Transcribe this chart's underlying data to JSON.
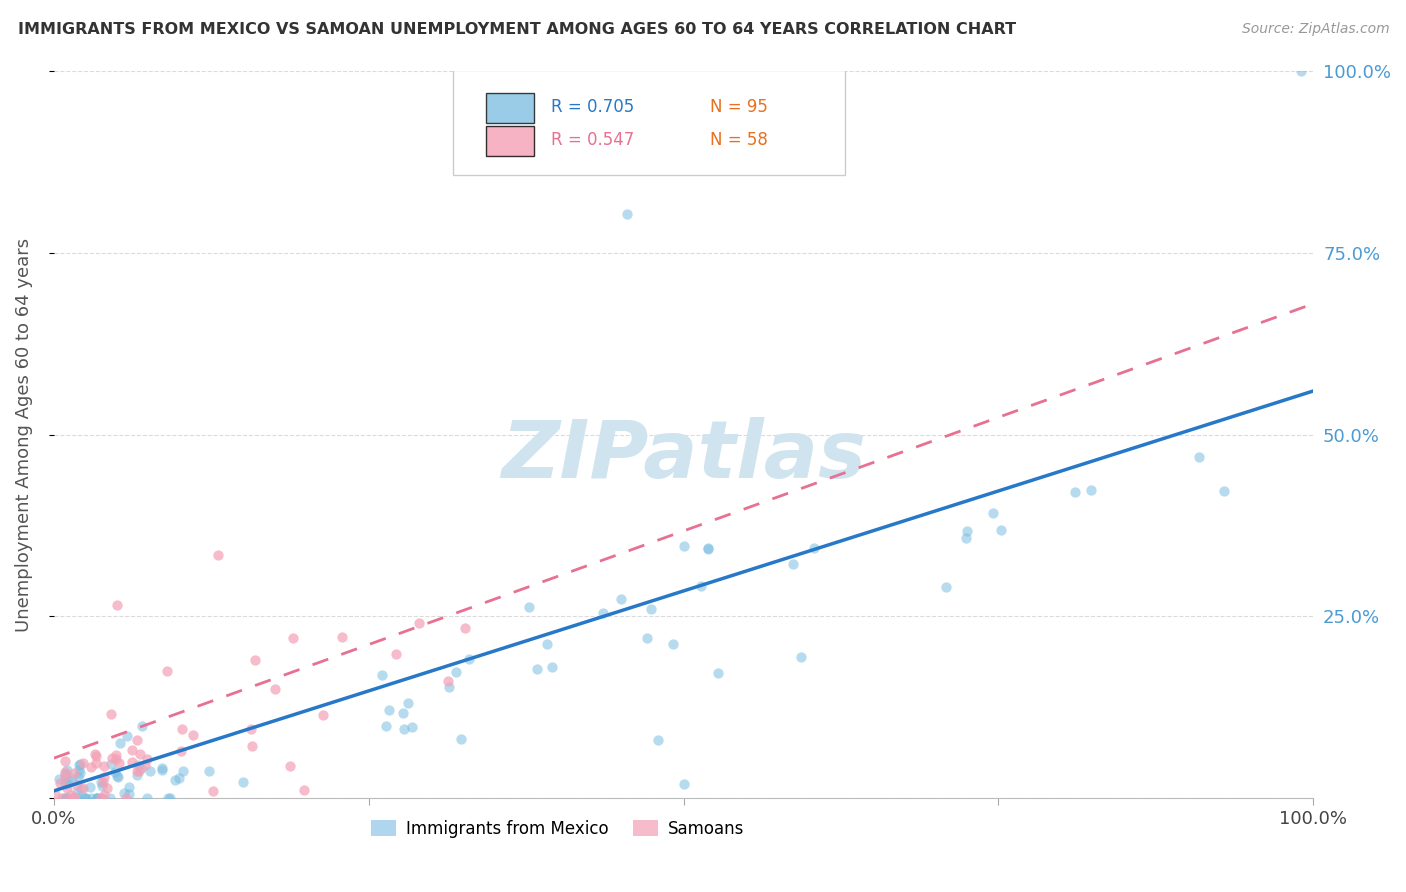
{
  "title": "IMMIGRANTS FROM MEXICO VS SAMOAN UNEMPLOYMENT AMONG AGES 60 TO 64 YEARS CORRELATION CHART",
  "source": "Source: ZipAtlas.com",
  "ylabel": "Unemployment Among Ages 60 to 64 years",
  "legend_label1": "Immigrants from Mexico",
  "legend_label2": "Samoans",
  "legend_r1": "R = 0.705",
  "legend_n1": "N = 95",
  "legend_r2": "R = 0.547",
  "legend_n2": "N = 58",
  "blue_color": "#7abce0",
  "pink_color": "#f4a0b5",
  "blue_line_color": "#2878c8",
  "pink_line_color": "#e87090",
  "watermark_color": "#d0e4f0",
  "background_color": "#ffffff",
  "grid_color": "#d8d8d8",
  "right_label_color": "#4a9ad4",
  "title_color": "#333333",
  "ylabel_color": "#555555",
  "xlim": [
    0,
    1
  ],
  "ylim": [
    0,
    1
  ],
  "blue_line_x": [
    0.0,
    1.0
  ],
  "blue_line_y": [
    0.01,
    0.56
  ],
  "pink_line_x": [
    0.0,
    1.0
  ],
  "pink_line_y": [
    0.055,
    0.68
  ]
}
